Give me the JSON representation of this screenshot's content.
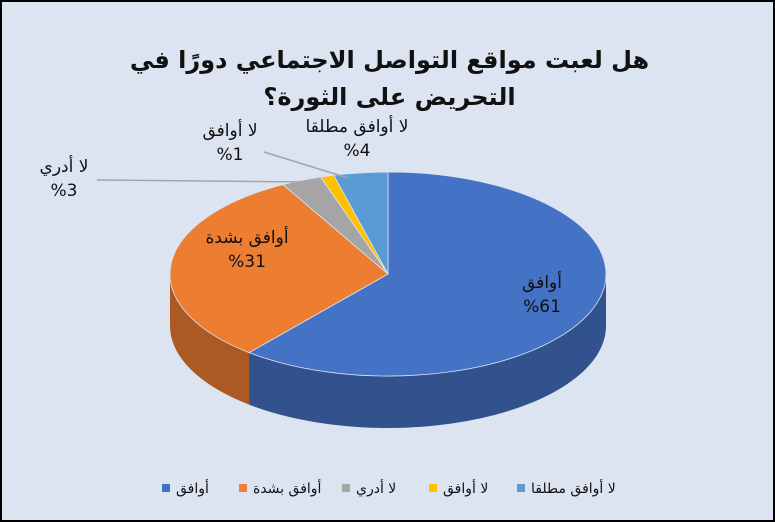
{
  "chart_data": {
    "type": "pie3d",
    "title": "هل لعبت مواقع التواصل الاجتماعي دورًا في التحريض على الثورة؟",
    "categories": [
      "أوافق",
      "أوافق بشدة",
      "لا أدري",
      "لا أوافق",
      "لا أوافق مطلقا"
    ],
    "values": [
      61,
      31,
      3,
      1,
      4
    ],
    "value_labels": [
      "%61",
      "%31",
      "%3",
      "%1",
      "%4"
    ],
    "colors": [
      "#4472c4",
      "#ed7d31",
      "#a5a5a5",
      "#ffc000",
      "#5b9bd5"
    ],
    "legend": "bottom"
  }
}
